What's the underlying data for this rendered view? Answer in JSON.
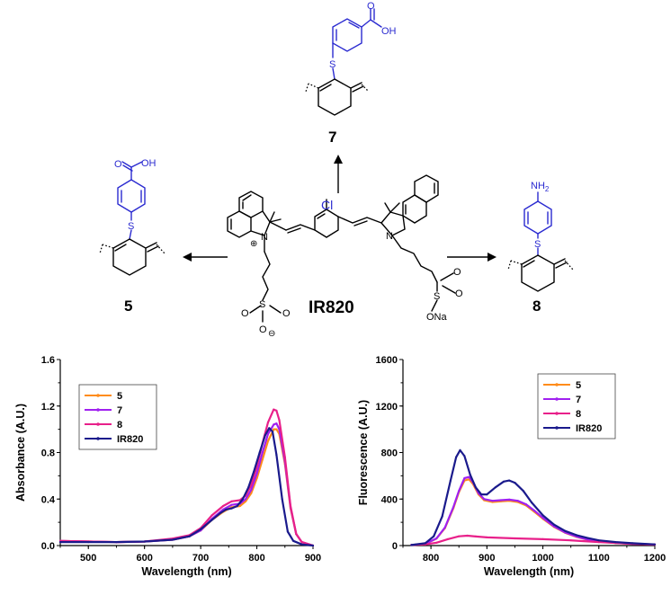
{
  "scheme": {
    "center_label": "IR820",
    "left_label": "5",
    "top_label": "7",
    "right_label": "8",
    "atoms": {
      "cl": "Cl",
      "n_plus": "N",
      "plus": "⊕",
      "n": "N",
      "s": "S",
      "o": "O",
      "o_minus": "O",
      "minus": "⊖",
      "ona": "ONa",
      "oh": "OH",
      "nh2": "NH",
      "sub2": "2"
    }
  },
  "chart_data": [
    {
      "type": "line",
      "title": "",
      "xlabel": "Wavelength (nm)",
      "ylabel": "Absorbance (A.U.)",
      "xlim": [
        450,
        900
      ],
      "ylim": [
        0,
        1.6
      ],
      "xticks": [
        "500",
        "600",
        "700",
        "800",
        "900"
      ],
      "yticks": [
        "0.0",
        "0.4",
        "0.8",
        "1.2",
        "1.6"
      ],
      "legend_position": "top-left",
      "series": [
        {
          "name": "5",
          "color": "#ff8c1a",
          "x": [
            450,
            500,
            550,
            600,
            650,
            680,
            700,
            720,
            740,
            755,
            770,
            780,
            790,
            800,
            810,
            820,
            830,
            835,
            840,
            850,
            860,
            870,
            880,
            900
          ],
          "y": [
            0.04,
            0.035,
            0.03,
            0.035,
            0.05,
            0.08,
            0.13,
            0.22,
            0.29,
            0.33,
            0.34,
            0.38,
            0.45,
            0.58,
            0.74,
            0.9,
            1.0,
            1.0,
            0.96,
            0.7,
            0.32,
            0.1,
            0.03,
            0.0
          ]
        },
        {
          "name": "7",
          "color": "#a020f0",
          "x": [
            450,
            500,
            550,
            600,
            650,
            680,
            700,
            720,
            740,
            755,
            770,
            780,
            790,
            800,
            810,
            820,
            830,
            835,
            840,
            850,
            860,
            870,
            880,
            900
          ],
          "y": [
            0.04,
            0.035,
            0.03,
            0.035,
            0.05,
            0.08,
            0.13,
            0.23,
            0.31,
            0.35,
            0.36,
            0.4,
            0.48,
            0.62,
            0.8,
            0.96,
            1.04,
            1.05,
            1.0,
            0.72,
            0.33,
            0.1,
            0.03,
            0.0
          ]
        },
        {
          "name": "8",
          "color": "#e8208a",
          "x": [
            450,
            500,
            550,
            600,
            650,
            680,
            700,
            720,
            740,
            755,
            770,
            780,
            790,
            800,
            810,
            820,
            830,
            835,
            840,
            850,
            860,
            870,
            880,
            900
          ],
          "y": [
            0.04,
            0.035,
            0.03,
            0.035,
            0.06,
            0.09,
            0.15,
            0.26,
            0.34,
            0.38,
            0.39,
            0.43,
            0.52,
            0.68,
            0.88,
            1.06,
            1.17,
            1.16,
            1.08,
            0.76,
            0.34,
            0.1,
            0.03,
            0.0
          ]
        },
        {
          "name": "IR820",
          "color": "#1a1a8c",
          "x": [
            450,
            500,
            550,
            600,
            650,
            680,
            700,
            720,
            735,
            745,
            755,
            765,
            775,
            785,
            795,
            805,
            815,
            822,
            828,
            835,
            845,
            855,
            865,
            880,
            900
          ],
          "y": [
            0.03,
            0.03,
            0.03,
            0.035,
            0.05,
            0.08,
            0.14,
            0.22,
            0.28,
            0.31,
            0.32,
            0.34,
            0.4,
            0.5,
            0.64,
            0.8,
            0.95,
            1.01,
            0.98,
            0.78,
            0.4,
            0.12,
            0.04,
            0.01,
            0.0
          ]
        }
      ]
    },
    {
      "type": "line",
      "title": "",
      "xlabel": "Wavelength (nm)",
      "ylabel": "Fluorescence (A.U.)",
      "xlim": [
        750,
        1200
      ],
      "ylim": [
        0,
        1600
      ],
      "xticks": [
        "800",
        "900",
        "1000",
        "1100",
        "1200"
      ],
      "yticks": [
        "0",
        "400",
        "800",
        "1200",
        "1600"
      ],
      "legend_position": "top-right",
      "series": [
        {
          "name": "5",
          "color": "#ff8c1a",
          "x": [
            765,
            790,
            810,
            825,
            840,
            850,
            860,
            868,
            875,
            885,
            895,
            910,
            925,
            940,
            955,
            970,
            985,
            1000,
            1020,
            1040,
            1060,
            1080,
            1100,
            1130,
            1160,
            1200
          ],
          "y": [
            5,
            15,
            60,
            150,
            320,
            460,
            560,
            570,
            530,
            440,
            390,
            375,
            380,
            385,
            375,
            345,
            290,
            230,
            160,
            110,
            75,
            50,
            35,
            22,
            15,
            10
          ]
        },
        {
          "name": "7",
          "color": "#a020f0",
          "x": [
            765,
            790,
            810,
            825,
            840,
            850,
            860,
            868,
            875,
            885,
            895,
            910,
            925,
            940,
            955,
            970,
            985,
            1000,
            1020,
            1040,
            1060,
            1080,
            1100,
            1130,
            1160,
            1200
          ],
          "y": [
            5,
            15,
            62,
            155,
            330,
            470,
            580,
            590,
            545,
            450,
            400,
            385,
            390,
            395,
            385,
            355,
            300,
            238,
            165,
            112,
            77,
            52,
            36,
            23,
            15,
            10
          ]
        },
        {
          "name": "8",
          "color": "#e8208a",
          "x": [
            765,
            790,
            810,
            830,
            850,
            865,
            880,
            900,
            950,
            1000,
            1050,
            1100,
            1150,
            1200
          ],
          "y": [
            5,
            10,
            25,
            55,
            80,
            85,
            78,
            70,
            62,
            55,
            45,
            30,
            18,
            8
          ]
        },
        {
          "name": "IR820",
          "color": "#1a1a8c",
          "x": [
            765,
            790,
            805,
            820,
            835,
            845,
            852,
            860,
            870,
            880,
            890,
            900,
            915,
            930,
            940,
            950,
            965,
            980,
            1000,
            1020,
            1040,
            1060,
            1080,
            1100,
            1130,
            1160,
            1200
          ],
          "y": [
            5,
            20,
            80,
            250,
            560,
            760,
            820,
            770,
            610,
            500,
            440,
            440,
            500,
            550,
            560,
            540,
            470,
            370,
            260,
            180,
            125,
            90,
            65,
            45,
            30,
            20,
            10
          ]
        }
      ]
    }
  ]
}
